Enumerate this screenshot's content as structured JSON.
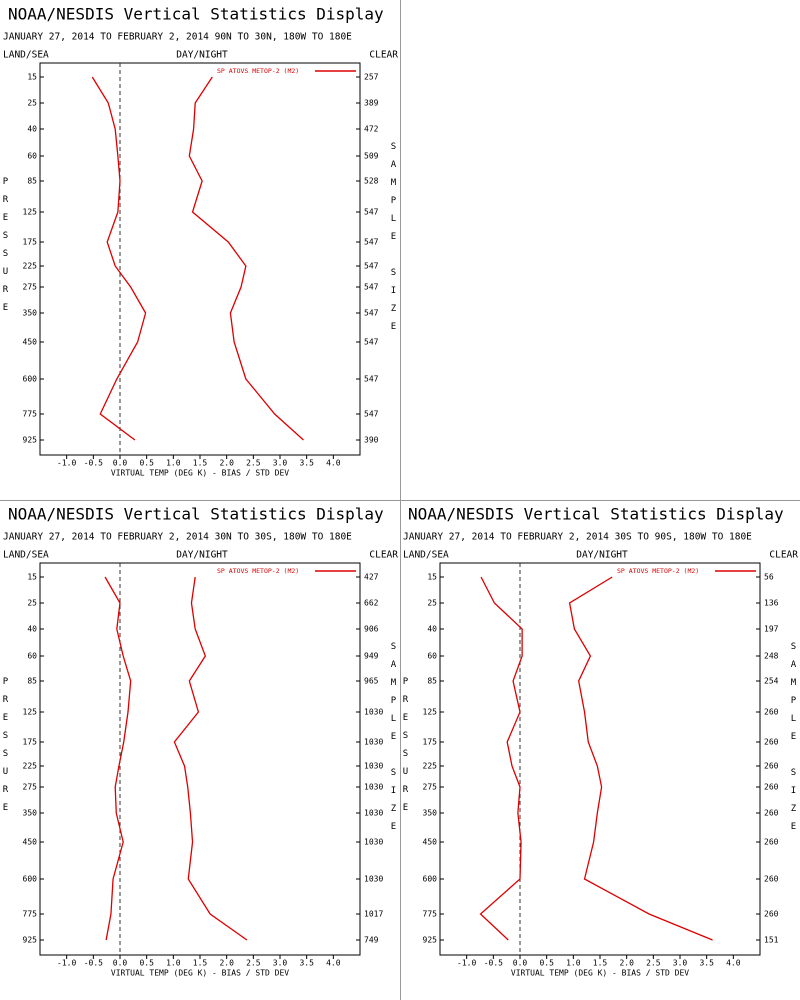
{
  "chart_data": [
    {
      "type": "line",
      "title": "NOAA/NESDIS Vertical Statistics Display",
      "subtitle": "JANUARY 27, 2014 TO FEBRUARY 2, 2014  90N TO 30N, 180W TO 180E",
      "left_label": "LAND/SEA",
      "center_label": "DAY/NIGHT",
      "right_label": "CLEAR",
      "y_label": "PRESSURE",
      "y2_label": "SAMPLE SIZE",
      "x_label": "VIRTUAL TEMP (DEG K) - BIAS / STD DEV",
      "categories": [
        15,
        25,
        40,
        60,
        85,
        125,
        175,
        225,
        275,
        350,
        450,
        600,
        775,
        925
      ],
      "sample_size": [
        257,
        389,
        472,
        509,
        528,
        547,
        547,
        547,
        547,
        547,
        547,
        547,
        547,
        390
      ],
      "series": [
        {
          "name": "SP ATOVS METOP-2 (M2)",
          "color": "#dd0000",
          "bias": [
            -0.52,
            -0.22,
            -0.09,
            -0.04,
            0,
            -0.04,
            -0.24,
            -0.09,
            0.2,
            0.48,
            0.33,
            -0.06,
            -0.37,
            0.28
          ],
          "std_dev": [
            1.73,
            1.41,
            1.38,
            1.3,
            1.54,
            1.36,
            2.03,
            2.36,
            2.27,
            2.07,
            2.14,
            2.36,
            2.9,
            3.44
          ]
        }
      ],
      "xlim": [
        -1.5,
        4.5
      ],
      "xticks": [
        {
          "value": -1,
          "label": "-1.0"
        },
        -0.5,
        {
          "value": 0,
          "label": "0.0"
        },
        0.5,
        {
          "value": 1,
          "label": "1.0"
        },
        1.5,
        {
          "value": 2,
          "label": "2.0"
        },
        2.5,
        {
          "value": 3,
          "label": "3.0"
        },
        3.5,
        {
          "value": 4,
          "label": "4.0"
        }
      ]
    },
    {
      "type": "line",
      "title": "NOAA/NESDIS Vertical Statistics Display",
      "subtitle": "JANUARY 27, 2014 TO FEBRUARY 2, 2014  30N TO 30S, 180W TO 180E",
      "left_label": "LAND/SEA",
      "center_label": "DAY/NIGHT",
      "right_label": "CLEAR",
      "y_label": "PRESSURE",
      "y2_label": "SAMPLE SIZE",
      "x_label": "VIRTUAL TEMP (DEG K) - BIAS / STD DEV",
      "categories": [
        15,
        25,
        40,
        60,
        85,
        125,
        175,
        225,
        275,
        350,
        450,
        600,
        775,
        925
      ],
      "sample_size": [
        427,
        662,
        906,
        949,
        965,
        1030,
        1030,
        1030,
        1030,
        1030,
        1030,
        1030,
        1017,
        749
      ],
      "series": [
        {
          "name": "SP ATOVS METOP-2 (M2)",
          "color": "#dd0000",
          "bias": [
            -0.28,
            0,
            -0.06,
            0.06,
            0.2,
            0.15,
            0.07,
            -0.02,
            -0.09,
            -0.07,
            0.06,
            -0.13,
            -0.17,
            -0.26
          ],
          "std_dev": [
            1.41,
            1.34,
            1.41,
            1.6,
            1.3,
            1.47,
            1.02,
            1.21,
            1.27,
            1.32,
            1.36,
            1.28,
            1.69,
            2.38
          ]
        }
      ],
      "xlim": [
        -1.5,
        4.5
      ],
      "xticks": [
        {
          "value": -1,
          "label": "-1.0"
        },
        -0.5,
        {
          "value": 0,
          "label": "0.0"
        },
        0.5,
        {
          "value": 1,
          "label": "1.0"
        },
        1.5,
        {
          "value": 2,
          "label": "2.0"
        },
        2.5,
        {
          "value": 3,
          "label": "3.0"
        },
        3.5,
        {
          "value": 4,
          "label": "4.0"
        }
      ]
    },
    {
      "type": "line",
      "title": "NOAA/NESDIS Vertical Statistics Display",
      "subtitle": "JANUARY 27, 2014 TO FEBRUARY 2, 2014  30S TO 90S, 180W TO 180E",
      "left_label": "LAND/SEA",
      "center_label": "DAY/NIGHT",
      "right_label": "CLEAR",
      "y_label": "PRESSURE",
      "y2_label": "SAMPLE SIZE",
      "x_label": "VIRTUAL TEMP (DEG K) - BIAS / STD DEV",
      "categories": [
        15,
        25,
        40,
        60,
        85,
        125,
        175,
        225,
        275,
        350,
        450,
        600,
        775,
        925
      ],
      "sample_size": [
        56,
        136,
        197,
        248,
        254,
        260,
        260,
        260,
        260,
        260,
        260,
        260,
        260,
        151
      ],
      "series": [
        {
          "name": "SP ATOVS METOP-2 (M2)",
          "color": "#dd0000",
          "bias": [
            -0.73,
            -0.48,
            0.04,
            0.04,
            -0.13,
            0,
            -0.24,
            -0.15,
            0,
            -0.04,
            0.02,
            0,
            -0.74,
            -0.22
          ],
          "std_dev": [
            1.73,
            0.93,
            1.02,
            1.32,
            1.1,
            1.21,
            1.28,
            1.45,
            1.53,
            1.45,
            1.38,
            1.21,
            2.42,
            3.61
          ]
        }
      ],
      "xlim": [
        -1.5,
        4.5
      ],
      "xticks": [
        {
          "value": -1,
          "label": "-1.0"
        },
        -0.5,
        {
          "value": 0,
          "label": "0.0"
        },
        0.5,
        {
          "value": 1,
          "label": "1.0"
        },
        1.5,
        {
          "value": 2,
          "label": "2.0"
        },
        2.5,
        {
          "value": 3,
          "label": "3.0"
        },
        3.5,
        {
          "value": 4,
          "label": "4.0"
        }
      ]
    }
  ]
}
